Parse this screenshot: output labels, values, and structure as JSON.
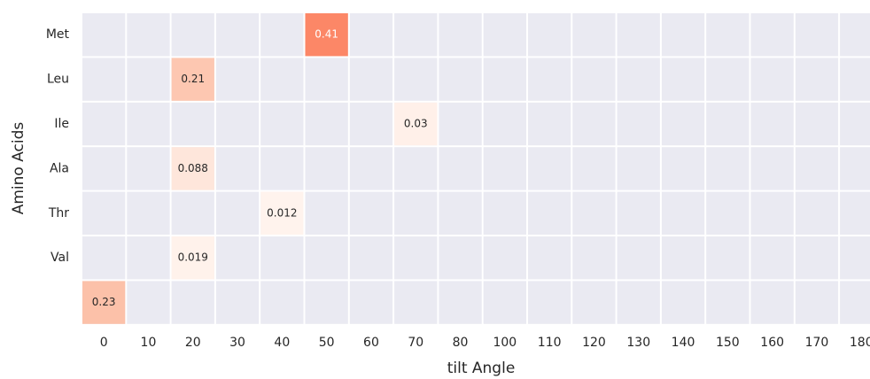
{
  "chart_data": {
    "type": "heatmap",
    "x_label": "tilt Angle",
    "y_label": "Amino Acids",
    "x_categories": [
      0,
      10,
      20,
      30,
      40,
      50,
      60,
      70,
      80,
      100,
      110,
      120,
      130,
      140,
      150,
      160,
      170,
      180
    ],
    "y_categories": [
      "Met",
      "Leu",
      "Ile",
      "Ala",
      "Thr",
      "Val",
      null
    ],
    "values": [
      [
        null,
        null,
        null,
        null,
        null,
        0.41,
        null,
        null,
        null,
        null,
        null,
        null,
        null,
        null,
        null,
        null,
        null,
        null
      ],
      [
        null,
        null,
        0.21,
        null,
        null,
        null,
        null,
        null,
        null,
        null,
        null,
        null,
        null,
        null,
        null,
        null,
        null,
        null
      ],
      [
        null,
        null,
        null,
        null,
        null,
        null,
        null,
        0.03,
        null,
        null,
        null,
        null,
        null,
        null,
        null,
        null,
        null,
        null
      ],
      [
        null,
        null,
        0.088,
        null,
        null,
        null,
        null,
        null,
        null,
        null,
        null,
        null,
        null,
        null,
        null,
        null,
        null,
        null
      ],
      [
        null,
        null,
        null,
        null,
        0.012,
        null,
        null,
        null,
        null,
        null,
        null,
        null,
        null,
        null,
        null,
        null,
        null,
        null
      ],
      [
        null,
        null,
        0.019,
        null,
        null,
        null,
        null,
        null,
        null,
        null,
        null,
        null,
        null,
        null,
        null,
        null,
        null,
        null
      ],
      [
        0.23,
        null,
        null,
        null,
        null,
        null,
        null,
        null,
        null,
        null,
        null,
        null,
        null,
        null,
        null,
        null,
        null,
        null
      ]
    ],
    "colormap": "Reds",
    "color_range": [
      0,
      1
    ]
  }
}
